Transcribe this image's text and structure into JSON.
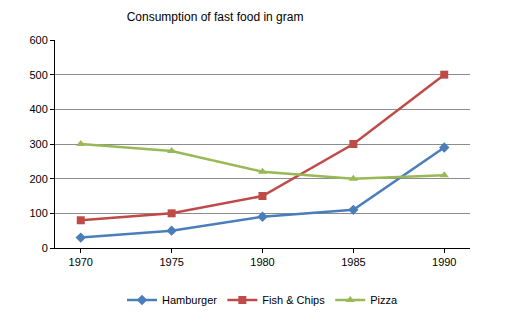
{
  "chart_data": {
    "type": "line",
    "title": "Consumption of fast food in gram",
    "categories": [
      "1970",
      "1975",
      "1980",
      "1985",
      "1990"
    ],
    "series": [
      {
        "name": "Hamburger",
        "color": "#4a7ebb",
        "marker": "diamond",
        "values": [
          30,
          50,
          90,
          110,
          290
        ]
      },
      {
        "name": "Fish & Chips",
        "color": "#be4b48",
        "marker": "square",
        "values": [
          80,
          100,
          150,
          300,
          500
        ]
      },
      {
        "name": "Pizza",
        "color": "#98b954",
        "marker": "triangle-up",
        "values": [
          300,
          280,
          220,
          200,
          210
        ]
      }
    ],
    "ylim": [
      0,
      600
    ],
    "yticks": [
      0,
      100,
      200,
      300,
      400,
      500,
      600
    ],
    "grid": true,
    "legend": "bottom"
  }
}
